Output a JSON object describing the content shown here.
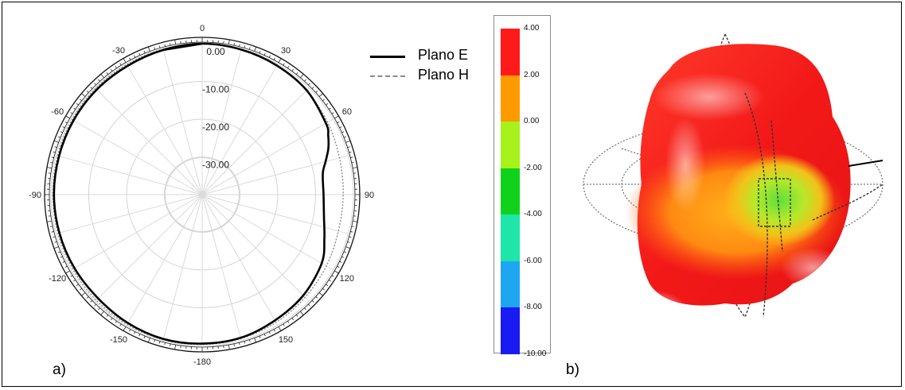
{
  "chart_data": [
    {
      "type": "polar",
      "angle_ticks": [
        "0",
        "30",
        "60",
        "90",
        "120",
        "150",
        "-180",
        "-150",
        "-120",
        "-90",
        "-60",
        "-30"
      ],
      "angle_values": [
        0,
        30,
        60,
        90,
        120,
        150,
        180,
        -150,
        -120,
        -90,
        -60,
        -30
      ],
      "radial_ticks": [
        "0.00",
        "-10.00",
        "-20.00",
        "-30.00"
      ],
      "radial_values": [
        0,
        -10,
        -20,
        -30
      ],
      "rlim": [
        -40,
        0
      ],
      "grid": true,
      "legend_position": "top-right",
      "series": [
        {
          "name": "Plano E",
          "style": "solid",
          "color": "#000000",
          "theta": [
            0,
            15,
            30,
            45,
            60,
            65,
            70,
            75,
            80,
            90,
            100,
            110,
            120,
            135,
            150,
            165,
            180,
            -165,
            -150,
            -135,
            -120,
            -105,
            -90,
            -75,
            -60,
            -45,
            -30,
            -15
          ],
          "r": [
            0,
            -0.2,
            -0.5,
            -0.9,
            -2.2,
            -3.2,
            -4.5,
            -6.2,
            -7.6,
            -7.9,
            -7.3,
            -5.6,
            -3.5,
            -2.2,
            -1.5,
            -0.7,
            -0.5,
            -0.4,
            -0.7,
            -1.1,
            -1.0,
            -0.9,
            -0.8,
            -0.8,
            -0.7,
            -0.6,
            -0.6,
            -0.3
          ]
        },
        {
          "name": "Plano H",
          "style": "dashed",
          "color": "#8a8a8a",
          "theta": [
            0,
            15,
            30,
            45,
            60,
            75,
            90,
            105,
            120,
            135,
            150,
            165,
            180,
            -165,
            -150,
            -135,
            -120,
            -105,
            -90,
            -75,
            -60,
            -45,
            -30,
            -15
          ],
          "r": [
            0,
            -0.2,
            -0.4,
            -1.0,
            -1.7,
            -2.4,
            -2.7,
            -2.7,
            -2.1,
            -1.5,
            -0.9,
            -0.5,
            -0.3,
            -0.2,
            -0.3,
            -0.4,
            -0.5,
            -0.5,
            -0.5,
            -0.4,
            -0.3,
            -0.2,
            -0.2,
            -0.1
          ]
        }
      ]
    },
    {
      "type": "heatmap",
      "colorbar_ticks": [
        "4.00",
        "2.00",
        "0.00",
        "-2.00",
        "-4.00",
        "-6.00",
        "-8.00",
        "-10.00"
      ],
      "colorbar_values": [
        4,
        2,
        0,
        -2,
        -4,
        -6,
        -8,
        -10
      ],
      "colors": [
        "#ff1a1a",
        "#ff9a00",
        "#a6f21a",
        "#11d21a",
        "#1ee6a8",
        "#1ea6f2",
        "#1a1af2"
      ]
    }
  ],
  "labels": {
    "panel_a": "a)",
    "panel_b": "b)"
  },
  "legend": {
    "e_plane": "Plano E",
    "h_plane": "Plano H"
  }
}
